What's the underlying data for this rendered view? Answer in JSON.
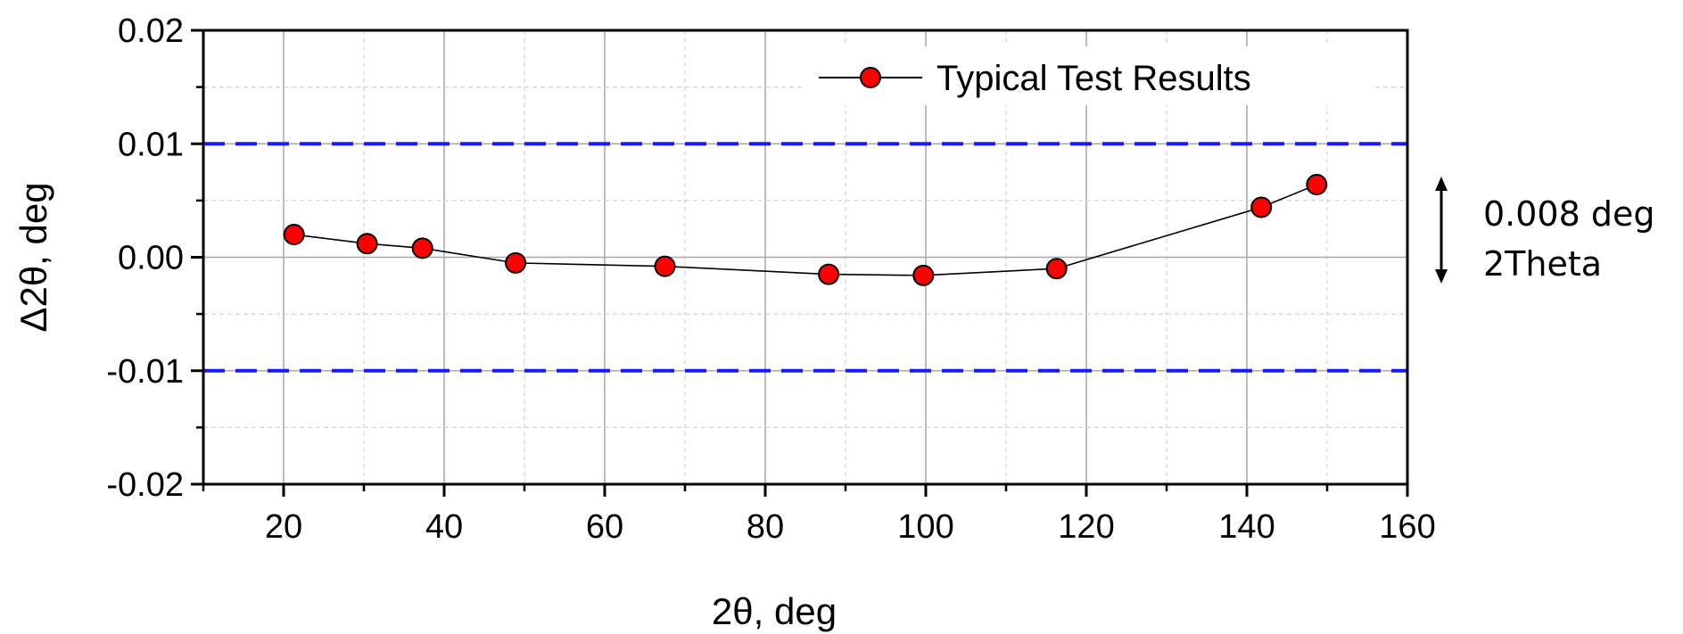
{
  "chart_data": {
    "type": "line",
    "xlabel": "2θ, deg",
    "ylabel": "Δ2θ, deg",
    "xlim": [
      10,
      160
    ],
    "ylim": [
      -0.02,
      0.02
    ],
    "x_ticks": [
      20,
      40,
      60,
      80,
      100,
      120,
      140,
      160
    ],
    "x_tick_labels": [
      "20",
      "40",
      "60",
      "80",
      "100",
      "120",
      "140",
      "160"
    ],
    "y_ticks": [
      -0.02,
      -0.01,
      0.0,
      0.01,
      0.02
    ],
    "y_tick_labels": [
      "-0.02",
      "-0.01",
      "0.00",
      "0.01",
      "0.02"
    ],
    "grid": true,
    "legend_position": "top-right",
    "series": [
      {
        "name": "Typical Test Results",
        "color": "#ff0000",
        "line_color": "#000000",
        "marker": "circle",
        "x": [
          21.3,
          30.4,
          37.3,
          48.9,
          67.5,
          87.9,
          99.7,
          116.3,
          141.8,
          148.7
        ],
        "y": [
          0.002,
          0.0012,
          0.0008,
          -0.0005,
          -0.0008,
          -0.0015,
          -0.0016,
          -0.001,
          0.0044,
          0.0064
        ]
      }
    ],
    "reference_lines": [
      {
        "axis": "y",
        "value": 0.01,
        "color": "#1a1aff",
        "style": "dashed"
      },
      {
        "axis": "y",
        "value": -0.01,
        "color": "#1a1aff",
        "style": "dashed"
      }
    ],
    "annotation": {
      "line1": "0.008 deg",
      "line2": "2Theta"
    }
  }
}
